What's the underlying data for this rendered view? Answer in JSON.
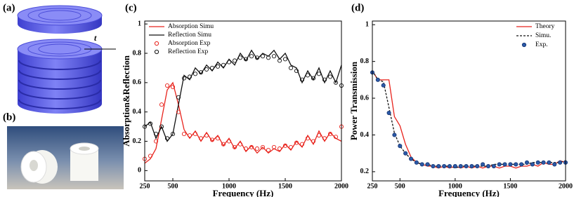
{
  "panel_labels": [
    "(a)",
    "(b)"
  ],
  "annotation": "t",
  "chart_data": [
    {
      "type": "line",
      "panel_label": "(c)",
      "xlabel": "Frequency (Hz)",
      "ylabel": "Absorption&Reflection",
      "x": [
        250,
        300,
        350,
        400,
        450,
        500,
        550,
        600,
        650,
        700,
        750,
        800,
        850,
        900,
        950,
        1000,
        1050,
        1100,
        1150,
        1200,
        1250,
        1300,
        1350,
        1400,
        1450,
        1500,
        1550,
        1600,
        1650,
        1700,
        1750,
        1800,
        1850,
        1900,
        1950,
        2000
      ],
      "xlim": [
        250,
        2000
      ],
      "xticks": [
        250,
        500,
        1000,
        1500,
        2000
      ],
      "ylim": [
        -0.07,
        1.02
      ],
      "yticks": [
        0,
        0.2,
        0.4,
        0.6,
        0.8,
        1
      ],
      "legend": "upper left",
      "series": [
        {
          "name": "Absorption Simu",
          "color": "#e8231c",
          "values": [
            0.05,
            0.08,
            0.15,
            0.35,
            0.55,
            0.6,
            0.45,
            0.28,
            0.22,
            0.27,
            0.2,
            0.26,
            0.2,
            0.24,
            0.17,
            0.22,
            0.15,
            0.2,
            0.13,
            0.17,
            0.12,
            0.16,
            0.12,
            0.15,
            0.13,
            0.18,
            0.14,
            0.2,
            0.16,
            0.24,
            0.18,
            0.27,
            0.2,
            0.26,
            0.22,
            0.2
          ]
        },
        {
          "name": "Reflection Simu",
          "color": "#111111",
          "values": [
            0.3,
            0.33,
            0.22,
            0.3,
            0.2,
            0.25,
            0.45,
            0.65,
            0.62,
            0.7,
            0.66,
            0.72,
            0.68,
            0.74,
            0.7,
            0.76,
            0.72,
            0.8,
            0.75,
            0.82,
            0.76,
            0.8,
            0.78,
            0.82,
            0.76,
            0.8,
            0.72,
            0.7,
            0.6,
            0.68,
            0.62,
            0.7,
            0.6,
            0.68,
            0.6,
            0.72
          ]
        },
        {
          "name": "Absorption Exp",
          "color": "#e8231c",
          "marker": "open-circle",
          "values": [
            0.08,
            0.1,
            0.2,
            0.45,
            0.58,
            0.57,
            0.4,
            0.25,
            0.24,
            0.25,
            0.22,
            0.24,
            0.21,
            0.22,
            0.18,
            0.2,
            0.16,
            0.18,
            0.15,
            0.16,
            0.15,
            0.16,
            0.14,
            0.16,
            0.15,
            0.17,
            0.16,
            0.19,
            0.18,
            0.22,
            0.2,
            0.24,
            0.22,
            0.25,
            0.23,
            0.3
          ]
        },
        {
          "name": "Reflection Exp",
          "color": "#111111",
          "marker": "open-circle",
          "values": [
            0.3,
            0.32,
            0.25,
            0.3,
            0.22,
            0.25,
            0.5,
            0.63,
            0.64,
            0.66,
            0.67,
            0.69,
            0.7,
            0.71,
            0.72,
            0.74,
            0.75,
            0.77,
            0.76,
            0.78,
            0.77,
            0.78,
            0.77,
            0.78,
            0.75,
            0.76,
            0.7,
            0.68,
            0.62,
            0.65,
            0.63,
            0.66,
            0.62,
            0.64,
            0.6,
            0.58
          ]
        }
      ]
    },
    {
      "type": "line",
      "panel_label": "(d)",
      "xlabel": "Frequency (Hz)",
      "ylabel": "Power Transmission",
      "x": [
        250,
        300,
        350,
        400,
        450,
        500,
        550,
        600,
        650,
        700,
        750,
        800,
        850,
        900,
        950,
        1000,
        1050,
        1100,
        1150,
        1200,
        1250,
        1300,
        1350,
        1400,
        1450,
        1500,
        1550,
        1600,
        1650,
        1700,
        1750,
        1800,
        1850,
        1900,
        1950,
        2000
      ],
      "xlim": [
        250,
        2000
      ],
      "xticks": [
        250,
        500,
        1000,
        1500,
        2000
      ],
      "ylim": [
        0.15,
        1.02
      ],
      "yticks": [
        0.2,
        0.4,
        0.6,
        0.8,
        1
      ],
      "legend": "upper right",
      "series": [
        {
          "name": "Theory",
          "color": "#e8231c",
          "values": [
            0.75,
            0.7,
            0.7,
            0.7,
            0.5,
            0.45,
            0.35,
            0.28,
            0.25,
            0.24,
            0.23,
            0.23,
            0.22,
            0.23,
            0.22,
            0.23,
            0.22,
            0.23,
            0.22,
            0.23,
            0.22,
            0.23,
            0.23,
            0.22,
            0.23,
            0.23,
            0.22,
            0.23,
            0.23,
            0.24,
            0.23,
            0.25,
            0.24,
            0.24,
            0.26,
            0.25
          ]
        },
        {
          "name": "Simu.",
          "color": "#111111",
          "line_style": "dashed",
          "values": [
            0.75,
            0.7,
            0.69,
            0.55,
            0.41,
            0.34,
            0.3,
            0.27,
            0.25,
            0.24,
            0.24,
            0.23,
            0.23,
            0.23,
            0.23,
            0.22,
            0.23,
            0.23,
            0.23,
            0.23,
            0.23,
            0.23,
            0.24,
            0.24,
            0.24,
            0.24,
            0.24,
            0.24,
            0.24,
            0.25,
            0.25,
            0.25,
            0.25,
            0.25,
            0.25,
            0.26
          ]
        },
        {
          "name": "Exp.",
          "color": "#2b5aa8",
          "marker": "filled-circle",
          "values": [
            0.74,
            0.7,
            0.67,
            0.52,
            0.4,
            0.34,
            0.3,
            0.27,
            0.25,
            0.24,
            0.24,
            0.23,
            0.23,
            0.23,
            0.23,
            0.23,
            0.23,
            0.23,
            0.23,
            0.23,
            0.24,
            0.23,
            0.23,
            0.24,
            0.24,
            0.24,
            0.24,
            0.24,
            0.25,
            0.24,
            0.25,
            0.25,
            0.25,
            0.24,
            0.25,
            0.25
          ]
        }
      ]
    }
  ]
}
